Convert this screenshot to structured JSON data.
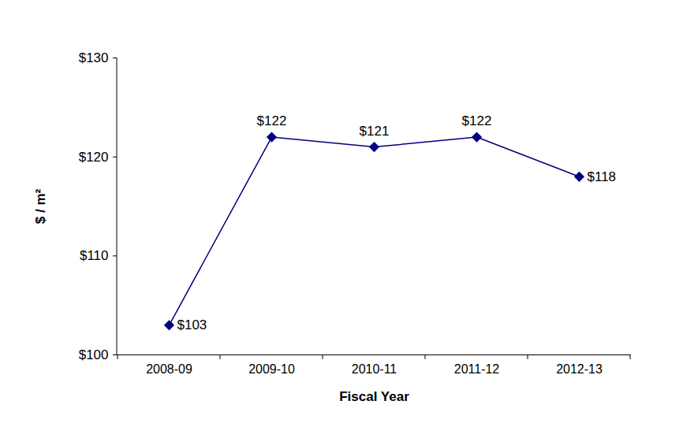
{
  "chart_data": {
    "type": "line",
    "categories": [
      "2008-09",
      "2009-10",
      "2010-11",
      "2011-12",
      "2012-13"
    ],
    "values": [
      103,
      122,
      121,
      122,
      118
    ],
    "value_labels": [
      "$103",
      "$122",
      "$121",
      "$122",
      "$118"
    ],
    "data_labels": true,
    "color": "#000080",
    "marker": "diamond",
    "x_label": "Fiscal Year",
    "y_label": "$ / m²",
    "ylim": [
      100,
      130
    ],
    "yticks": [
      {
        "value": 100,
        "label": "$100"
      },
      {
        "value": 110,
        "label": "$110"
      },
      {
        "value": 120,
        "label": "$120"
      },
      {
        "value": 130,
        "label": "$130"
      }
    ],
    "grid": false
  }
}
